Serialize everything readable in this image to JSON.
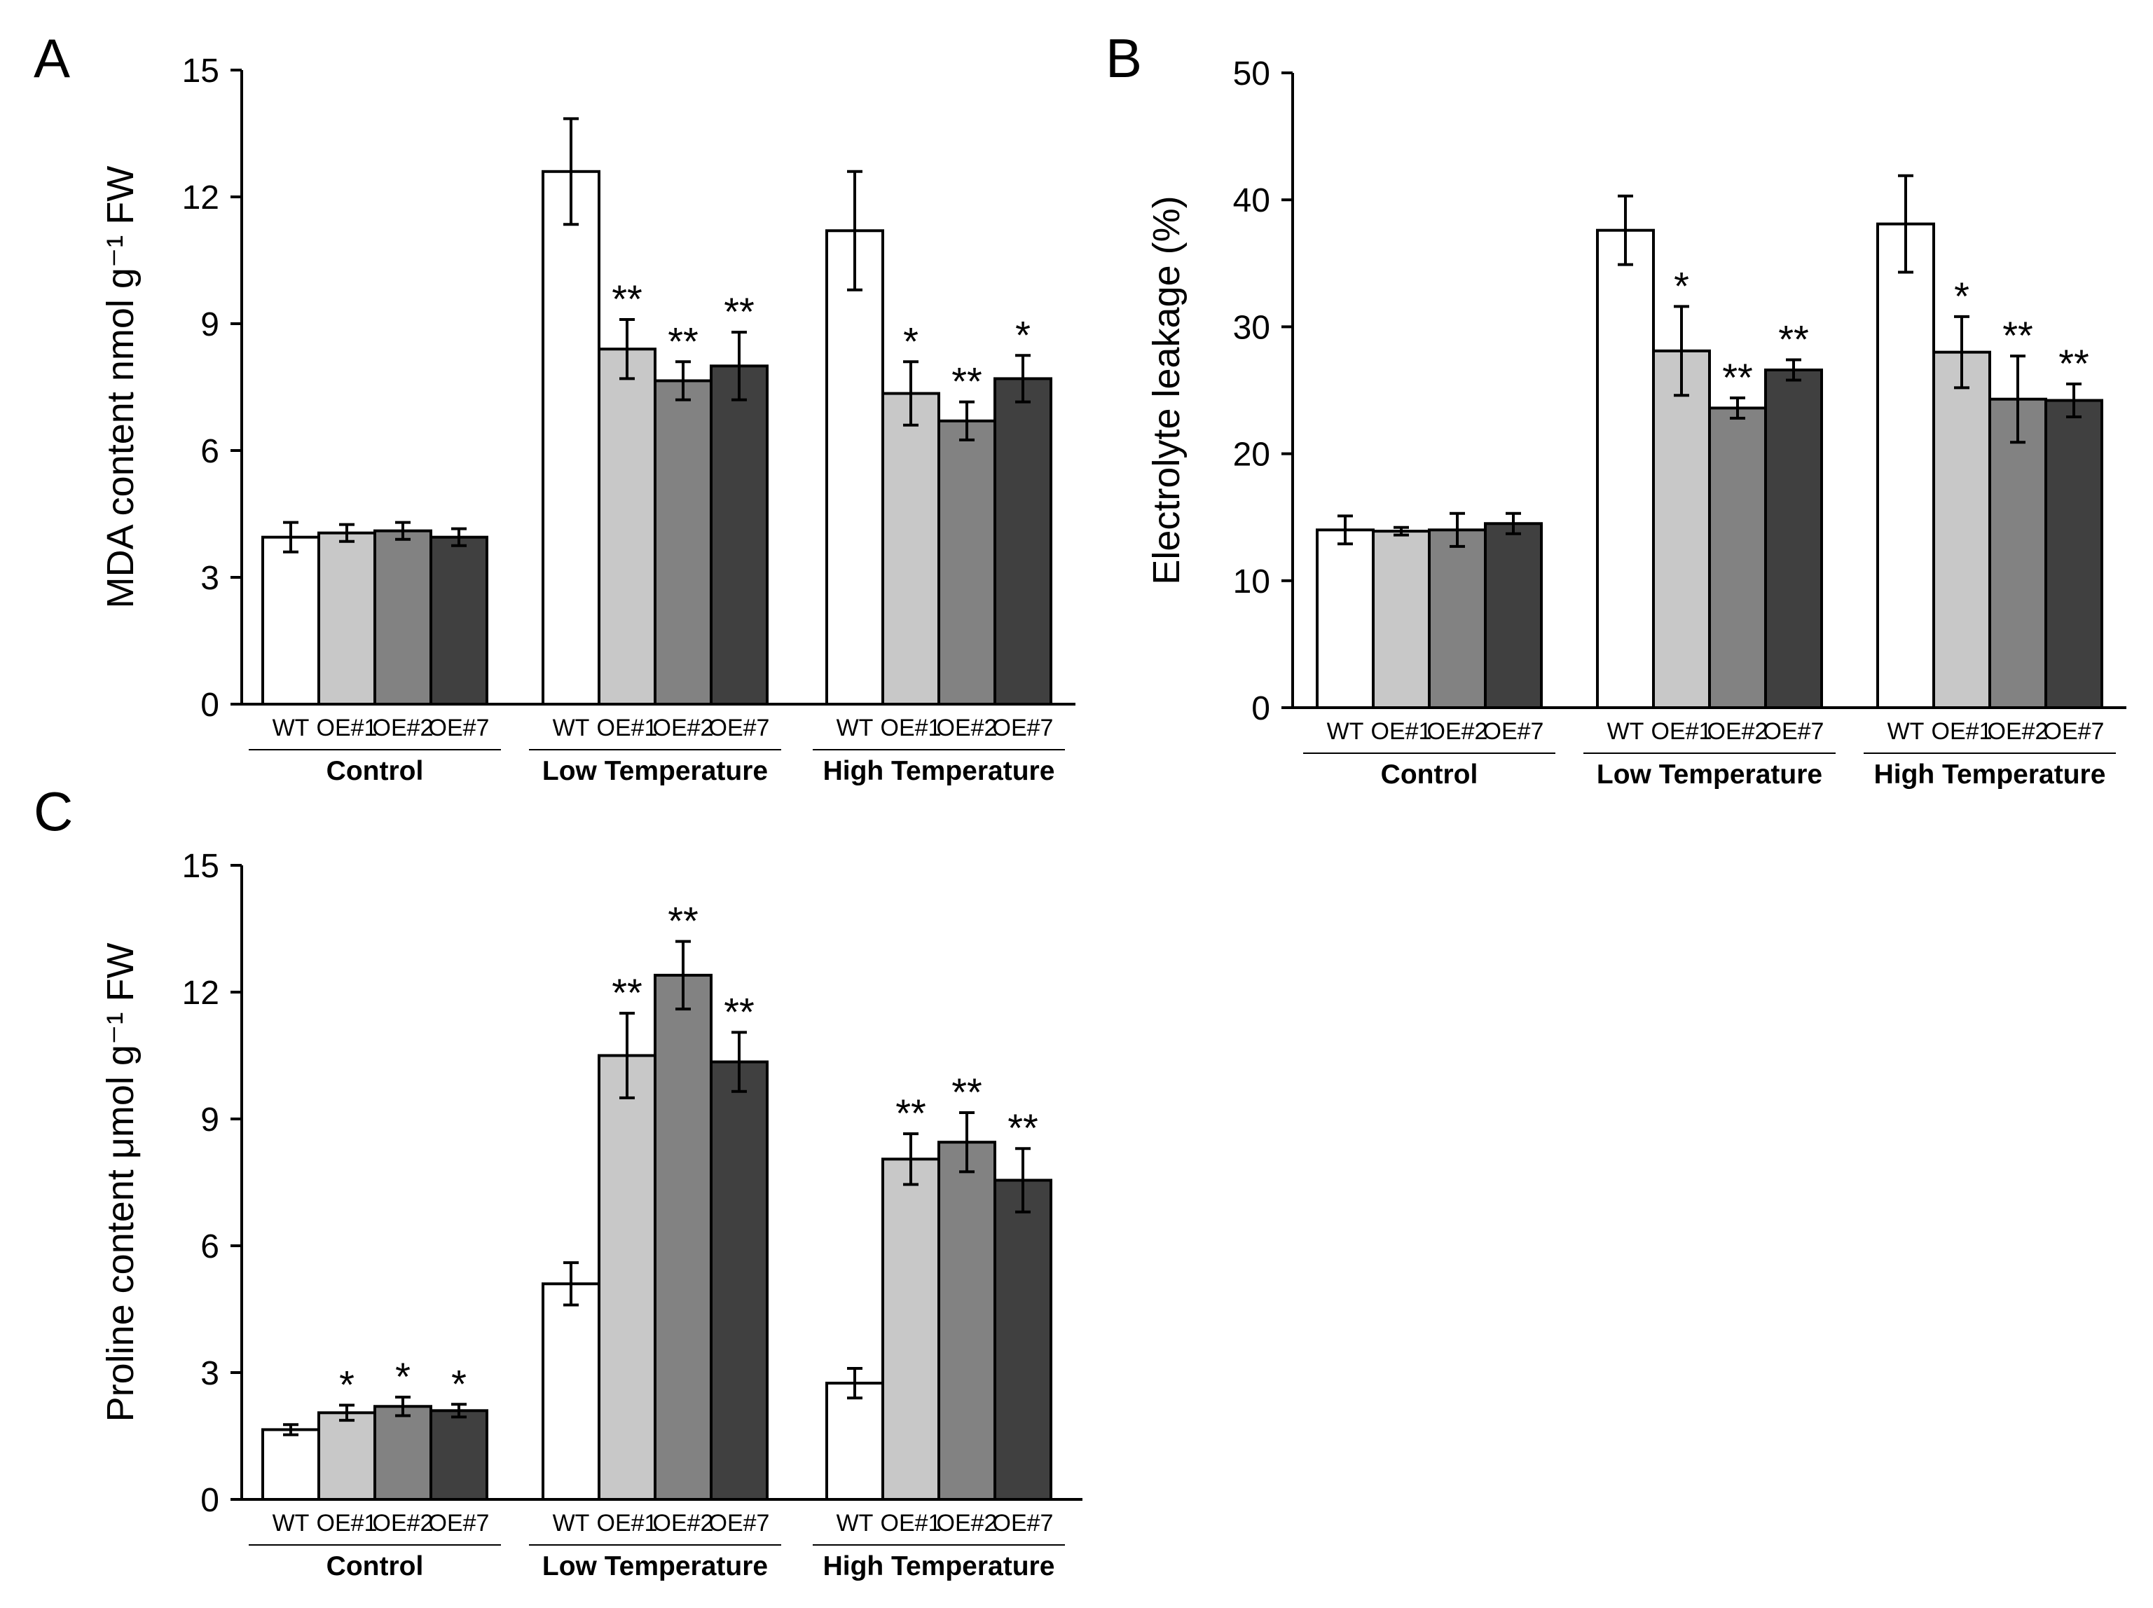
{
  "colors": {
    "WT": "#ffffff",
    "OE#1": "#c8c8c8",
    "OE#2": "#828282",
    "OE#7": "#404040"
  },
  "chart_data": [
    {
      "panel": "A",
      "type": "bar",
      "ylabel": "MDA content nmol g⁻¹ FW",
      "ylim": [
        0,
        15
      ],
      "yticks": [
        "0",
        "3",
        "6",
        "9",
        "12",
        "15"
      ],
      "groups": [
        "Control",
        "Low Temperature",
        "High Temperature"
      ],
      "categories": [
        "WT",
        "OE#1",
        "OE#2",
        "OE#7"
      ],
      "series": [
        {
          "group": "Control",
          "values": [
            3.95,
            4.05,
            4.1,
            3.95
          ],
          "errors": [
            0.35,
            0.2,
            0.2,
            0.2
          ],
          "sig": [
            "",
            "",
            "",
            ""
          ]
        },
        {
          "group": "Low Temperature",
          "values": [
            12.6,
            8.4,
            7.65,
            8.0
          ],
          "errors": [
            1.25,
            0.7,
            0.45,
            0.8
          ],
          "sig": [
            "",
            "**",
            "**",
            "**"
          ]
        },
        {
          "group": "High Temperature",
          "values": [
            11.2,
            7.35,
            6.7,
            7.7
          ],
          "errors": [
            1.4,
            0.75,
            0.45,
            0.55
          ],
          "sig": [
            "",
            "*",
            "**",
            "*"
          ]
        }
      ]
    },
    {
      "panel": "B",
      "type": "bar",
      "ylabel": "Electrolyte leakage (%)",
      "ylim": [
        0,
        50
      ],
      "yticks": [
        "0",
        "10",
        "20",
        "30",
        "40",
        "50"
      ],
      "groups": [
        "Control",
        "Low Temperature",
        "High Temperature"
      ],
      "categories": [
        "WT",
        "OE#1",
        "OE#2",
        "OE#7"
      ],
      "series": [
        {
          "group": "Control",
          "values": [
            14.0,
            13.9,
            14.0,
            14.5
          ],
          "errors": [
            1.1,
            0.3,
            1.3,
            0.8
          ],
          "sig": [
            "",
            "",
            "",
            ""
          ]
        },
        {
          "group": "Low Temperature",
          "values": [
            37.6,
            28.1,
            23.6,
            26.6
          ],
          "errors": [
            2.7,
            3.5,
            0.8,
            0.8
          ],
          "sig": [
            "",
            "*",
            "**",
            "**"
          ]
        },
        {
          "group": "High Temperature",
          "values": [
            38.1,
            28.0,
            24.3,
            24.2
          ],
          "errors": [
            3.8,
            2.8,
            3.4,
            1.3
          ],
          "sig": [
            "",
            "*",
            "**",
            "**"
          ]
        }
      ]
    },
    {
      "panel": "C",
      "type": "bar",
      "ylabel": "Proline  content μmol g⁻¹ FW",
      "ylim": [
        0,
        15
      ],
      "yticks": [
        "0",
        "3",
        "6",
        "9",
        "12",
        "15"
      ],
      "groups": [
        "Control",
        "Low Temperature",
        "High Temperature"
      ],
      "categories": [
        "WT",
        "OE#1",
        "OE#2",
        "OE#7"
      ],
      "series": [
        {
          "group": "Control",
          "values": [
            1.65,
            2.05,
            2.2,
            2.1
          ],
          "errors": [
            0.12,
            0.18,
            0.22,
            0.15
          ],
          "sig": [
            "",
            "*",
            "*",
            "*"
          ]
        },
        {
          "group": "Low Temperature",
          "values": [
            5.1,
            10.5,
            12.4,
            10.35
          ],
          "errors": [
            0.5,
            1.0,
            0.8,
            0.7
          ],
          "sig": [
            "",
            "**",
            "**",
            "**"
          ]
        },
        {
          "group": "High Temperature",
          "values": [
            2.75,
            8.05,
            8.45,
            7.55
          ],
          "errors": [
            0.35,
            0.6,
            0.7,
            0.75
          ],
          "sig": [
            "",
            "**",
            "**",
            "**"
          ]
        }
      ]
    }
  ]
}
